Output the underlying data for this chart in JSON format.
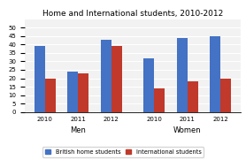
{
  "title": "Home and International students, 2010-2012",
  "groups": [
    "Men",
    "Women"
  ],
  "years": [
    "2010",
    "2011",
    "2012"
  ],
  "british_home": {
    "Men": [
      39,
      24,
      43
    ],
    "Women": [
      32,
      44,
      45
    ]
  },
  "international": {
    "Men": [
      20,
      23,
      39
    ],
    "Women": [
      14,
      18,
      20
    ]
  },
  "bar_color_british": "#4472C4",
  "bar_color_international": "#C0392B",
  "ylim": [
    0,
    55
  ],
  "yticks": [
    0,
    5,
    10,
    15,
    20,
    25,
    30,
    35,
    40,
    45,
    50
  ],
  "legend_british": "British home students",
  "legend_international": "International students",
  "bg_color": "#F2F2F2",
  "title_fontsize": 6.5,
  "tick_fontsize": 5,
  "group_label_fontsize": 6,
  "legend_fontsize": 4.8
}
